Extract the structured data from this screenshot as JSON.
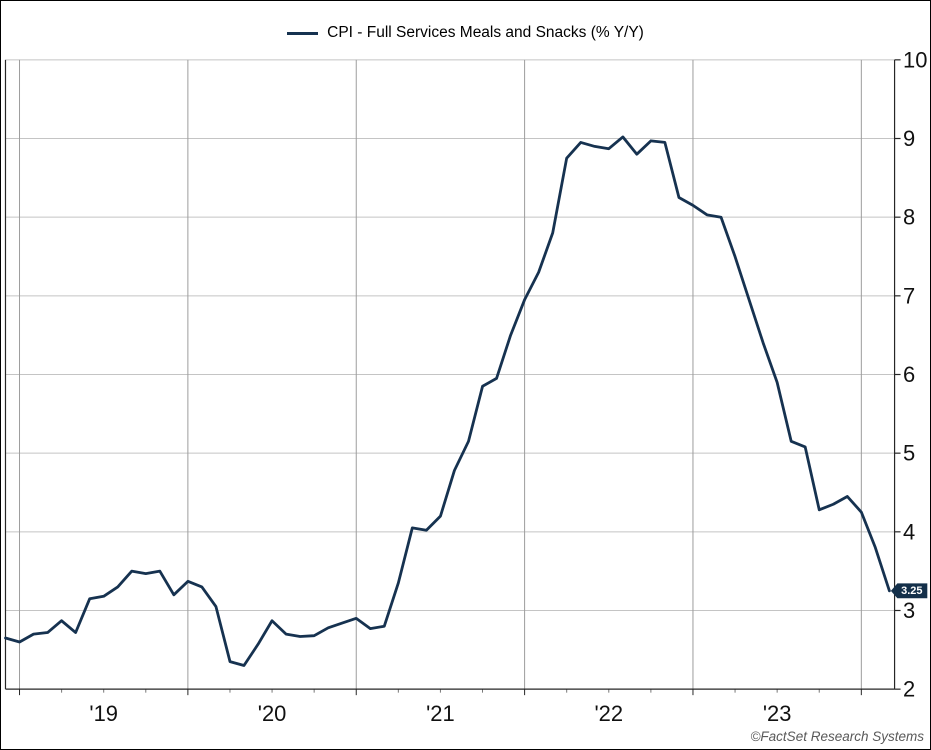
{
  "legend": {
    "label": "CPI - Full Services Meals and Snacks (% Y/Y)"
  },
  "footer": {
    "credit": "©FactSet Research Systems"
  },
  "last_value_badge": {
    "text": "3.25",
    "bg_color": "#14304a",
    "text_color": "#ffffff"
  },
  "colors": {
    "line": "#163250",
    "axis": "#262626",
    "h_gridline": "#c4c4c4",
    "v_gridline": "#9c9c9c",
    "quarter_tick": "#777777",
    "tick_label": "#111111"
  },
  "chart_data": {
    "type": "line",
    "title": "CPI - Full Services Meals and Snacks (% Y/Y)",
    "frequency": "monthly",
    "x_start": "2018-12",
    "x_end": "2024-03",
    "ylim": [
      2,
      10
    ],
    "y_ticks": [
      2,
      3,
      4,
      5,
      6,
      7,
      8,
      9,
      10
    ],
    "y_axis_side": "right",
    "grid": true,
    "legend_position": "top-center",
    "x_tick_labels": [
      "'19",
      "'20",
      "'21",
      "'22",
      "'23"
    ],
    "last_value_label": "3.25",
    "x_months": [
      "2018-12",
      "2019-01",
      "2019-02",
      "2019-03",
      "2019-04",
      "2019-05",
      "2019-06",
      "2019-07",
      "2019-08",
      "2019-09",
      "2019-10",
      "2019-11",
      "2019-12",
      "2020-01",
      "2020-02",
      "2020-03",
      "2020-04",
      "2020-05",
      "2020-06",
      "2020-07",
      "2020-08",
      "2020-09",
      "2020-10",
      "2020-11",
      "2020-12",
      "2021-01",
      "2021-02",
      "2021-03",
      "2021-04",
      "2021-05",
      "2021-06",
      "2021-07",
      "2021-08",
      "2021-09",
      "2021-10",
      "2021-11",
      "2021-12",
      "2022-01",
      "2022-02",
      "2022-03",
      "2022-04",
      "2022-05",
      "2022-06",
      "2022-07",
      "2022-08",
      "2022-09",
      "2022-10",
      "2022-11",
      "2022-12",
      "2023-01",
      "2023-02",
      "2023-03",
      "2023-04",
      "2023-05",
      "2023-06",
      "2023-07",
      "2023-08",
      "2023-09",
      "2023-10",
      "2023-11",
      "2023-12",
      "2024-01",
      "2024-02",
      "2024-03"
    ],
    "series": [
      {
        "name": "CPI - Full Services Meals and Snacks (% Y/Y)",
        "values": [
          2.65,
          2.6,
          2.7,
          2.72,
          2.87,
          2.72,
          3.15,
          3.18,
          3.3,
          3.5,
          3.47,
          3.5,
          3.2,
          3.37,
          3.3,
          3.05,
          2.35,
          2.3,
          2.57,
          2.87,
          2.7,
          2.67,
          2.68,
          2.78,
          2.84,
          2.9,
          2.77,
          2.8,
          3.35,
          4.05,
          4.02,
          4.2,
          4.78,
          5.15,
          5.85,
          5.95,
          6.5,
          6.95,
          7.3,
          7.8,
          8.75,
          8.95,
          8.9,
          8.87,
          9.02,
          8.8,
          8.97,
          8.95,
          8.25,
          8.15,
          8.03,
          8.0,
          7.5,
          6.95,
          6.4,
          5.9,
          5.15,
          5.08,
          4.28,
          4.35,
          4.45,
          4.25,
          3.8,
          3.25
        ]
      }
    ]
  }
}
